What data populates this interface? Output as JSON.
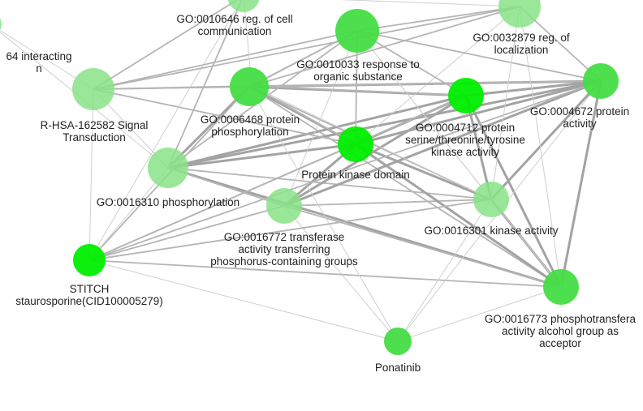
{
  "colors": {
    "strong": "#00ee00",
    "medium": "#44dd44",
    "light": "#88e388",
    "edge": "#a8a8a8"
  },
  "nodes": [
    {
      "id": "n_top",
      "label": [],
      "color": "light"
    },
    {
      "id": "n_go0010646",
      "label": [
        "GO:0010646 reg. of cell",
        "communication"
      ],
      "color": "medium"
    },
    {
      "id": "n_go0032879",
      "label": [
        "GO:0032879 reg. of",
        "localization"
      ],
      "color": "light"
    },
    {
      "id": "n_interacting",
      "label": [
        "64 interacting",
        "n"
      ],
      "color": "light"
    },
    {
      "id": "n_go0010033",
      "label": [
        "GO:0010033 response to",
        "organic substance"
      ],
      "color": "medium"
    },
    {
      "id": "n_rhsa",
      "label": [
        "R-HSA-162582 Signal",
        "Transduction"
      ],
      "color": "light"
    },
    {
      "id": "n_go0006468",
      "label": [
        "GO:0006468 protein",
        "phosphorylation"
      ],
      "color": "medium"
    },
    {
      "id": "n_go0004712",
      "label": [
        "GO:0004712 protein",
        "serine/threonine/tyrosine",
        "kinase activity"
      ],
      "color": "strong"
    },
    {
      "id": "n_go0004672",
      "label": [
        "GO:0004672 protein",
        "activity"
      ],
      "color": "medium"
    },
    {
      "id": "n_pkd",
      "label": [
        "Protein kinase domain"
      ],
      "color": "strong"
    },
    {
      "id": "n_go0016310",
      "label": [
        "GO:0016310 phosphorylation"
      ],
      "color": "light"
    },
    {
      "id": "n_go0016772",
      "label": [
        "GO:0016772 transferase",
        "activity transferring",
        "phosphorus-containing groups"
      ],
      "color": "light"
    },
    {
      "id": "n_go0016301",
      "label": [
        "GO:0016301 kinase activity"
      ],
      "color": "light"
    },
    {
      "id": "n_stitch",
      "label": [
        "STITCH",
        "staurosporine(CID100005279)"
      ],
      "color": "strong"
    },
    {
      "id": "n_go0016773",
      "label": [
        "GO:0016773 phosphotransfera",
        "activity alcohol group as",
        "acceptor"
      ],
      "color": "medium"
    },
    {
      "id": "n_ponatinib",
      "label": [
        "Ponatinib"
      ],
      "color": "medium"
    }
  ],
  "edges": [
    [
      "n_go0006468",
      "n_go0004672",
      "thick"
    ],
    [
      "n_go0006468",
      "n_go0004712",
      "thick"
    ],
    [
      "n_go0006468",
      "n_pkd",
      "thick"
    ],
    [
      "n_go0006468",
      "n_go0016301",
      "mid"
    ],
    [
      "n_go0006468",
      "n_go0016773",
      "mid"
    ],
    [
      "n_go0006468",
      "n_go0016310",
      "thick"
    ],
    [
      "n_go0006468",
      "n_go0010646",
      "mid"
    ],
    [
      "n_go0006468",
      "n_go0010033",
      "mid"
    ],
    [
      "n_go0006468",
      "n_rhsa",
      "mid"
    ],
    [
      "n_go0006468",
      "n_stitch",
      "mid"
    ],
    [
      "n_go0016310",
      "n_go0004672",
      "thick"
    ],
    [
      "n_go0016310",
      "n_go0004712",
      "thick"
    ],
    [
      "n_go0016310",
      "n_pkd",
      "thick"
    ],
    [
      "n_go0016310",
      "n_go0016301",
      "mid"
    ],
    [
      "n_go0016310",
      "n_go0016773",
      "thick"
    ],
    [
      "n_go0016310",
      "n_go0016772",
      "mid"
    ],
    [
      "n_go0016310",
      "n_go0010646",
      "mid"
    ],
    [
      "n_go0016310",
      "n_stitch",
      "thin"
    ],
    [
      "n_go0016310",
      "n_rhsa",
      "thin"
    ],
    [
      "n_go0016310",
      "n_top",
      "mid"
    ],
    [
      "n_go0016772",
      "n_go0004672",
      "thick"
    ],
    [
      "n_go0016772",
      "n_go0004712",
      "thick"
    ],
    [
      "n_go0016772",
      "n_pkd",
      "thick"
    ],
    [
      "n_go0016772",
      "n_go0016301",
      "mid"
    ],
    [
      "n_go0016772",
      "n_go0016773",
      "mid"
    ],
    [
      "n_go0016772",
      "n_stitch",
      "mid"
    ],
    [
      "n_go0016772",
      "n_ponatinib",
      "thin"
    ],
    [
      "n_go0016772",
      "n_go0010646",
      "thin"
    ],
    [
      "n_pkd",
      "n_go0004672",
      "thick"
    ],
    [
      "n_pkd",
      "n_go0004712",
      "thick"
    ],
    [
      "n_pkd",
      "n_go0016301",
      "thick"
    ],
    [
      "n_pkd",
      "n_go0016773",
      "thick"
    ],
    [
      "n_pkd",
      "n_stitch",
      "mid"
    ],
    [
      "n_pkd",
      "n_go0010646",
      "mid"
    ],
    [
      "n_pkd",
      "n_go0032879",
      "thin"
    ],
    [
      "n_pkd",
      "n_rhsa",
      "mid"
    ],
    [
      "n_go0004712",
      "n_go0004672",
      "thick"
    ],
    [
      "n_go0004712",
      "n_go0016301",
      "thick"
    ],
    [
      "n_go0004712",
      "n_go0016773",
      "thick"
    ],
    [
      "n_go0004712",
      "n_stitch",
      "mid"
    ],
    [
      "n_go0004712",
      "n_go0010033",
      "thin"
    ],
    [
      "n_go0004672",
      "n_go0016301",
      "thick"
    ],
    [
      "n_go0004672",
      "n_go0016773",
      "thick"
    ],
    [
      "n_go0004672",
      "n_stitch",
      "mid"
    ],
    [
      "n_go0004672",
      "n_rhsa",
      "mid"
    ],
    [
      "n_go0004672",
      "n_go0010033",
      "mid"
    ],
    [
      "n_go0016301",
      "n_go0016773",
      "thick"
    ],
    [
      "n_go0016301",
      "n_stitch",
      "mid"
    ],
    [
      "n_go0016301",
      "n_go0010646",
      "thin"
    ],
    [
      "n_go0016773",
      "n_stitch",
      "mid"
    ],
    [
      "n_go0016773",
      "n_ponatinib",
      "thin"
    ],
    [
      "n_go0016773",
      "n_go0010646",
      "thin"
    ],
    [
      "n_go0016773",
      "n_go0032879",
      "thin"
    ],
    [
      "n_stitch",
      "n_rhsa",
      "thin"
    ],
    [
      "n_stitch",
      "n_ponatinib",
      "thin"
    ],
    [
      "n_stitch",
      "n_top",
      "thin"
    ],
    [
      "n_rhsa",
      "n_go0010646",
      "mid"
    ],
    [
      "n_rhsa",
      "n_go0032879",
      "mid"
    ],
    [
      "n_rhsa",
      "n_go0010033",
      "mid"
    ],
    [
      "n_rhsa",
      "n_interacting",
      "thin"
    ],
    [
      "n_rhsa",
      "n_top",
      "mid"
    ],
    [
      "n_go0010646",
      "n_go0032879",
      "mid"
    ],
    [
      "n_go0010646",
      "n_go0010033",
      "mid"
    ],
    [
      "n_go0010646",
      "n_go0004672",
      "mid"
    ],
    [
      "n_go0010646",
      "n_go0004712",
      "mid"
    ],
    [
      "n_go0010033",
      "n_go0004712",
      "mid"
    ],
    [
      "n_go0010033",
      "n_pkd",
      "mid"
    ],
    [
      "n_go0010033",
      "n_go0016301",
      "thin"
    ],
    [
      "n_go0032879",
      "n_go0004672",
      "mid"
    ],
    [
      "n_go0032879",
      "n_go0016301",
      "thin"
    ],
    [
      "n_go0032879",
      "n_go0006468",
      "mid"
    ],
    [
      "n_top",
      "n_go0010033",
      "thin"
    ],
    [
      "n_top",
      "n_go0032879",
      "thin"
    ],
    [
      "n_interacting",
      "n_go0016310",
      "thin"
    ],
    [
      "n_ponatinib",
      "n_go0004672",
      "thin"
    ],
    [
      "n_ponatinib",
      "n_go0006468",
      "thin"
    ],
    [
      "n_ponatinib",
      "n_go0016301",
      "thin"
    ]
  ]
}
